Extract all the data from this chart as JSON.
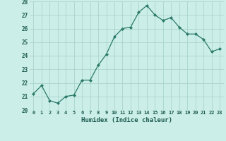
{
  "x": [
    0,
    1,
    2,
    3,
    4,
    5,
    6,
    7,
    8,
    9,
    10,
    11,
    12,
    13,
    14,
    15,
    16,
    17,
    18,
    19,
    20,
    21,
    22,
    23
  ],
  "y": [
    21.2,
    21.8,
    20.7,
    20.5,
    21.0,
    21.1,
    22.2,
    22.2,
    23.3,
    24.1,
    25.4,
    26.0,
    26.1,
    27.2,
    27.7,
    27.0,
    26.6,
    26.8,
    26.1,
    25.6,
    25.6,
    25.2,
    24.3,
    24.5
  ],
  "xlabel": "Humidex (Indice chaleur)",
  "ylim": [
    20,
    28
  ],
  "xlim": [
    -0.5,
    23.5
  ],
  "yticks": [
    20,
    21,
    22,
    23,
    24,
    25,
    26,
    27,
    28
  ],
  "xticks": [
    0,
    1,
    2,
    3,
    4,
    5,
    6,
    7,
    8,
    9,
    10,
    11,
    12,
    13,
    14,
    15,
    16,
    17,
    18,
    19,
    20,
    21,
    22,
    23
  ],
  "line_color": "#2a7a6a",
  "marker_color": "#2a7a6a",
  "bg_color": "#cceee8",
  "grid_color": "#aad4cc",
  "label_color": "#1a5a50"
}
